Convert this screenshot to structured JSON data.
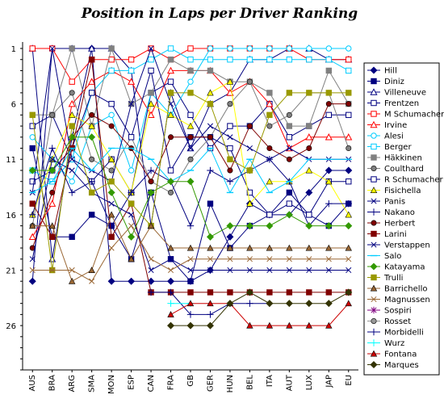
{
  "chart_data": {
    "type": "line",
    "title": "Position in Laps per Driver Ranking",
    "xlabel": "",
    "ylabel": "",
    "categories": [
      "AUS",
      "BRA",
      "ARG",
      "SMA",
      "MON",
      "ESP",
      "CAN",
      "FRA",
      "GB",
      "GER",
      "HUN",
      "BEL",
      "ITA",
      "AUT",
      "LUX",
      "JAP",
      "EU"
    ],
    "yticks": [
      1,
      6,
      11,
      16,
      21,
      26
    ],
    "ylim": [
      1,
      30
    ],
    "y_inverted": true,
    "grid": false,
    "legend_position": "right",
    "series": [
      {
        "name": "Hill",
        "color": "#000080",
        "marker": "diamond",
        "values": [
          22,
          1,
          1,
          1,
          22,
          22,
          22,
          22,
          22,
          21,
          18,
          15,
          16,
          16,
          14,
          12,
          12
        ]
      },
      {
        "name": "Diniz",
        "color": "#000080",
        "marker": "square",
        "values": [
          10,
          18,
          18,
          16,
          17,
          20,
          14,
          20,
          22,
          15,
          19,
          17,
          16,
          14,
          16,
          17,
          15
        ]
      },
      {
        "name": "Villeneuve",
        "color": "#000080",
        "marker": "triangle-open",
        "values": [
          1,
          20,
          9,
          1,
          1,
          3,
          17,
          5,
          10,
          6,
          5,
          2,
          2,
          1,
          1,
          2,
          2
        ]
      },
      {
        "name": "Frentzen",
        "color": "#000080",
        "marker": "square-open",
        "values": [
          8,
          7,
          11,
          13,
          11,
          14,
          5,
          4,
          7,
          10,
          8,
          8,
          6,
          9,
          8,
          7,
          7
        ]
      },
      {
        "name": "M Schumacher",
        "color": "#FF0000",
        "marker": "square-open",
        "values": [
          1,
          1,
          4,
          2,
          2,
          2,
          1,
          2,
          1,
          1,
          1,
          1,
          1,
          1,
          2,
          2,
          2
        ]
      },
      {
        "name": "Irvine",
        "color": "#FF0000",
        "marker": "triangle-open",
        "values": [
          18,
          15,
          6,
          4,
          3,
          4,
          7,
          3,
          3,
          3,
          5,
          4,
          6,
          10,
          9,
          9,
          9
        ]
      },
      {
        "name": "Alesi",
        "color": "#00CCFF",
        "marker": "circle-open",
        "values": [
          9,
          11,
          13,
          8,
          7,
          12,
          5,
          7,
          4,
          1,
          1,
          1,
          1,
          1,
          1,
          1,
          1
        ]
      },
      {
        "name": "Berger",
        "color": "#00CCFF",
        "marker": "square-open",
        "values": [
          12,
          13,
          11,
          5,
          3,
          3,
          2,
          1,
          2,
          2,
          2,
          2,
          2,
          2,
          2,
          2,
          3
        ]
      },
      {
        "name": "Häkkinen",
        "color": "#808080",
        "marker": "square",
        "values": [
          7,
          7,
          1,
          8,
          1,
          6,
          5,
          2,
          3,
          3,
          4,
          4,
          5,
          8,
          8,
          3,
          6
        ]
      },
      {
        "name": "Coulthard",
        "color": "#808080",
        "marker": "circle",
        "values": [
          17,
          7,
          5,
          11,
          12,
          9,
          13,
          14,
          11,
          9,
          6,
          4,
          8,
          7,
          5,
          5,
          10
        ]
      },
      {
        "name": "R Schumacher",
        "color": "#000080",
        "marker": "square-open",
        "values": [
          13,
          12,
          10,
          5,
          6,
          9,
          3,
          12,
          9,
          9,
          10,
          14,
          16,
          15,
          16,
          13,
          13
        ]
      },
      {
        "name": "Fisichella",
        "color": "#FFFF00",
        "marker": "triangle",
        "values": [
          16,
          11,
          7,
          8,
          11,
          14,
          6,
          7,
          8,
          5,
          4,
          15,
          13,
          13,
          12,
          13,
          16
        ]
      },
      {
        "name": "Panis",
        "color": "#000080",
        "marker": "x",
        "values": [
          14,
          1,
          11,
          12,
          13,
          6,
          1,
          6,
          10,
          8,
          9,
          10,
          11,
          10,
          11,
          11,
          11
        ]
      },
      {
        "name": "Nakano",
        "color": "#000080",
        "marker": "plus",
        "values": [
          16,
          10,
          14,
          13,
          17,
          14,
          12,
          13,
          17,
          12,
          13,
          12,
          11,
          13,
          17,
          15,
          15
        ]
      },
      {
        "name": "Herbert",
        "color": "#800000",
        "marker": "circle",
        "values": [
          19,
          14,
          9,
          7,
          8,
          10,
          13,
          9,
          9,
          9,
          12,
          8,
          10,
          11,
          10,
          6,
          6
        ]
      },
      {
        "name": "Larini",
        "color": "#800000",
        "marker": "square",
        "values": [
          15,
          18,
          10,
          2,
          18,
          15,
          23,
          23,
          23,
          23,
          23,
          23,
          23,
          23,
          23,
          23,
          23
        ]
      },
      {
        "name": "Verstappen",
        "color": "#000080",
        "marker": "x",
        "values": [
          20,
          11,
          12,
          14,
          15,
          16,
          21,
          20,
          21,
          21,
          21,
          21,
          21,
          21,
          21,
          21,
          21
        ]
      },
      {
        "name": "Salo",
        "color": "#00CCFF",
        "marker": "dash",
        "values": [
          14,
          13,
          10,
          12,
          10,
          10,
          11,
          13,
          12,
          10,
          14,
          11,
          14,
          13,
          11,
          11,
          11
        ]
      },
      {
        "name": "Katayama",
        "color": "#339900",
        "marker": "diamond",
        "values": [
          12,
          12,
          9,
          9,
          14,
          18,
          14,
          13,
          13,
          18,
          17,
          17,
          17,
          16,
          17,
          17,
          17
        ]
      },
      {
        "name": "Trulli",
        "color": "#999900",
        "marker": "square",
        "values": [
          7,
          21,
          8,
          14,
          13,
          15,
          17,
          5,
          5,
          6,
          11,
          12,
          7,
          5,
          5,
          5,
          5
        ]
      },
      {
        "name": "Barrichello",
        "color": "#996633",
        "marker": "triangle",
        "values": [
          17,
          17,
          22,
          21,
          16,
          20,
          17,
          19,
          19,
          19,
          19,
          19,
          19,
          19,
          19,
          19,
          19
        ]
      },
      {
        "name": "Magnussen",
        "color": "#996633",
        "marker": "x",
        "values": [
          21,
          21,
          21,
          22,
          19,
          17,
          20,
          21,
          20,
          20,
          20,
          20,
          20,
          20,
          20,
          20,
          20
        ]
      },
      {
        "name": "Sospiri",
        "color": "#800080",
        "marker": "asterisk",
        "values": [
          null,
          null,
          null,
          null,
          null,
          null,
          null,
          null,
          null,
          null,
          null,
          null,
          null,
          null,
          null,
          null,
          null
        ]
      },
      {
        "name": "Rosset",
        "color": "#999999",
        "marker": "circle",
        "values": [
          null,
          null,
          null,
          null,
          null,
          null,
          null,
          null,
          null,
          null,
          null,
          null,
          null,
          null,
          null,
          null,
          null
        ]
      },
      {
        "name": "Morbidelli",
        "color": "#000080",
        "marker": "plus",
        "values": [
          null,
          null,
          null,
          null,
          null,
          null,
          23,
          23,
          25,
          25,
          24,
          24,
          24,
          null,
          null,
          null,
          null
        ]
      },
      {
        "name": "Wurz",
        "color": "#00FFFF",
        "marker": "plus",
        "values": [
          null,
          null,
          null,
          null,
          null,
          null,
          null,
          24,
          24,
          null,
          null,
          null,
          null,
          null,
          null,
          null,
          null
        ]
      },
      {
        "name": "Fontana",
        "color": "#CC0000",
        "marker": "triangle",
        "values": [
          null,
          null,
          null,
          null,
          null,
          null,
          null,
          25,
          24,
          24,
          24,
          26,
          26,
          26,
          26,
          26,
          24
        ]
      },
      {
        "name": "Marques",
        "color": "#333300",
        "marker": "diamond",
        "values": [
          null,
          null,
          null,
          null,
          null,
          null,
          null,
          26,
          26,
          26,
          24,
          23,
          24,
          24,
          24,
          24,
          23
        ]
      }
    ]
  }
}
